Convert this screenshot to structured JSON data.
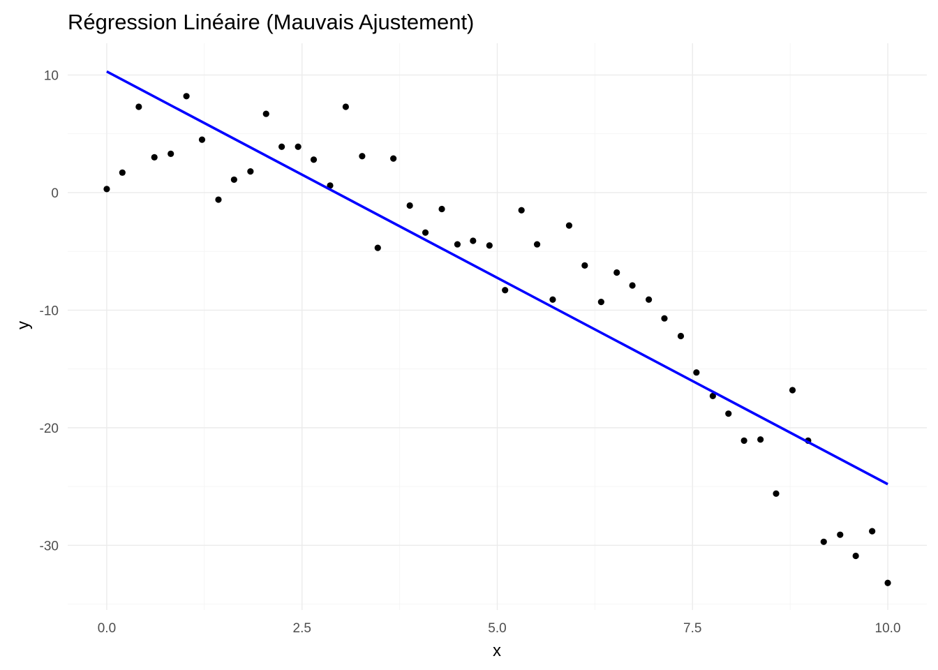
{
  "chart_data": {
    "type": "scatter",
    "title": "Régression Linéaire (Mauvais Ajustement)",
    "xlabel": "x",
    "ylabel": "y",
    "xlim": [
      -0.5,
      10.5
    ],
    "ylim": [
      -35.5,
      12.7
    ],
    "x_ticks": [
      0,
      2.5,
      5,
      7.5,
      10
    ],
    "x_tick_labels": [
      "0.0",
      "2.5",
      "5.0",
      "7.5",
      "10.0"
    ],
    "x_minor_ticks": [
      1.25,
      3.75,
      6.25,
      8.75
    ],
    "y_ticks": [
      10,
      0,
      -10,
      -20,
      -30
    ],
    "y_tick_labels": [
      "10",
      "0",
      "-10",
      "-20",
      "-30"
    ],
    "y_minor_ticks": [
      5,
      -5,
      -15,
      -25,
      -35
    ],
    "grid": true,
    "legend": "none",
    "points": {
      "color": "#000000",
      "x": [
        0.0,
        0.2,
        0.41,
        0.61,
        0.82,
        1.02,
        1.22,
        1.43,
        1.63,
        1.84,
        2.04,
        2.24,
        2.45,
        2.65,
        2.86,
        3.06,
        3.27,
        3.47,
        3.67,
        3.88,
        4.08,
        4.29,
        4.49,
        4.69,
        4.9,
        5.1,
        5.31,
        5.51,
        5.71,
        5.92,
        6.12,
        6.33,
        6.53,
        6.73,
        6.94,
        7.14,
        7.35,
        7.55,
        7.76,
        7.96,
        8.16,
        8.37,
        8.57,
        8.78,
        8.98,
        9.18,
        9.39,
        9.59,
        9.8,
        10.0
      ],
      "y": [
        0.3,
        1.7,
        7.3,
        3.0,
        3.3,
        8.2,
        4.5,
        -0.6,
        1.1,
        1.8,
        6.7,
        3.9,
        3.9,
        2.8,
        0.6,
        7.3,
        3.1,
        -4.7,
        2.9,
        -1.1,
        -3.4,
        -1.4,
        -4.4,
        -4.1,
        -4.5,
        -8.3,
        -1.5,
        -4.4,
        -9.1,
        -2.8,
        -6.2,
        -9.3,
        -6.8,
        -7.9,
        -9.1,
        -10.7,
        -12.2,
        -15.3,
        -17.3,
        -18.8,
        -21.1,
        -21.0,
        -25.6,
        -16.8,
        -21.1,
        -29.7,
        -29.1,
        -30.9,
        -28.8,
        -33.2
      ]
    },
    "fit_line": {
      "color": "#0000ff",
      "x": [
        0.0,
        10.0
      ],
      "y": [
        10.3,
        -24.8
      ]
    }
  }
}
